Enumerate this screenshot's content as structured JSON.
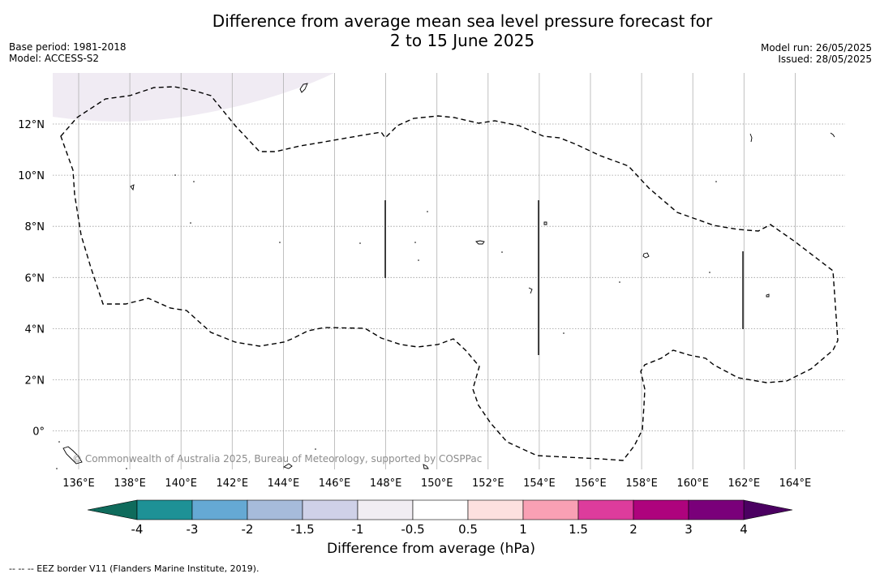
{
  "header": {
    "title_line1": "Difference from average mean sea level pressure forecast for",
    "title_line2": "2 to 15 June 2025",
    "base_period": "Base period: 1981-2018",
    "model": "Model: ACCESS-S2",
    "model_run": "Model run: 26/05/2025",
    "issued": "Issued: 28/05/2025"
  },
  "map": {
    "lon_labels": [
      "136°E",
      "138°E",
      "140°E",
      "142°E",
      "144°E",
      "146°E",
      "148°E",
      "150°E",
      "152°E",
      "154°E",
      "156°E",
      "158°E",
      "160°E",
      "162°E",
      "164°E"
    ],
    "lat_labels": [
      "12°N",
      "10°N",
      "8°N",
      "6°N",
      "4°N",
      "2°N",
      "0°"
    ],
    "copyright": "© Commonwealth of Australia 2025, Bureau of Meteorology, supported by COSPPac",
    "anomaly_shading_color": "#f0ebf3"
  },
  "colorbar": {
    "colors": [
      "#1e9196",
      "#65a9d4",
      "#a6bbdb",
      "#cfd1e8",
      "#f1edf3",
      "#ffffff",
      "#fde0df",
      "#f9a0b4",
      "#dd3c9c",
      "#ae037d",
      "#7a007a"
    ],
    "low_extend_color": "#0f6b5c",
    "high_extend_color": "#4b0061",
    "tick_labels": [
      "-4",
      "-3",
      "-2",
      "-1.5",
      "-1",
      "-0.5",
      "0.5",
      "1",
      "1.5",
      "2",
      "3",
      "4"
    ],
    "label": "Difference from average (hPa)"
  },
  "footnote": "--  --  -- EEZ border V11 (Flanders Marine Institute, 2019)."
}
